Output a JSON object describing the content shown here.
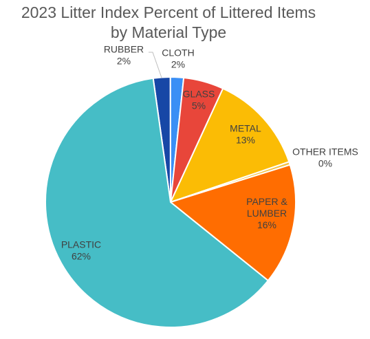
{
  "chart_data": {
    "type": "pie",
    "title_line1": "2023 Litter Index Percent of Littered Items",
    "title_line2": "by Material Type",
    "slices": [
      {
        "name": "RUBBER",
        "pct_label": "2%",
        "value": 2.2,
        "color": "#1747a6"
      },
      {
        "name": "CLOTH",
        "pct_label": "2%",
        "value": 1.7,
        "color": "#3a8ff5"
      },
      {
        "name": "GLASS",
        "pct_label": "5%",
        "value": 5.2,
        "color": "#e8463a"
      },
      {
        "name": "METAL",
        "pct_label": "13%",
        "value": 12.9,
        "color": "#fbbc05"
      },
      {
        "name": "OTHER ITEMS",
        "pct_label": "0%",
        "value": 0.4,
        "color": "#f3c242"
      },
      {
        "name": "PAPER & LUMBER",
        "name_lines": [
          "PAPER &",
          "LUMBER"
        ],
        "pct_label": "16%",
        "value": 15.6,
        "color": "#ff6d01"
      },
      {
        "name": "PLASTIC",
        "pct_label": "62%",
        "value": 62.0,
        "color": "#46bdc6"
      }
    ]
  }
}
